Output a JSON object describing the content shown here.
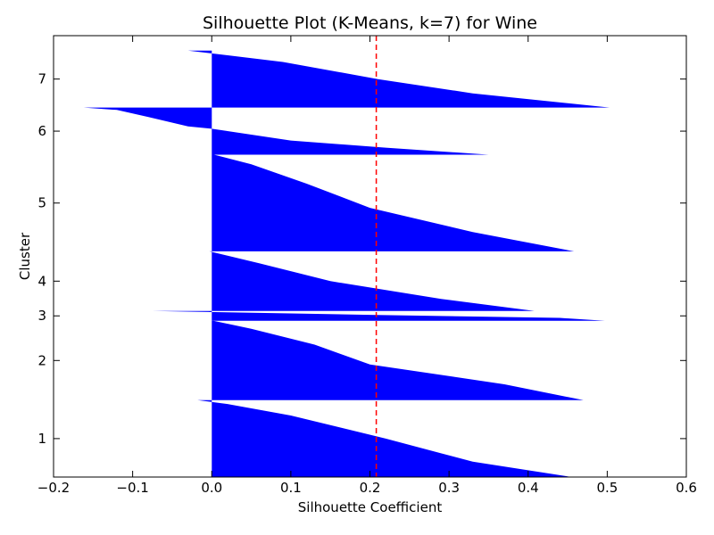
{
  "chart_data": {
    "type": "bar",
    "orientation": "horizontal",
    "title": "Silhouette Plot (K-Means, k=7) for Wine",
    "xlabel": "Silhouette Coefficient",
    "ylabel": "Cluster",
    "xlim": [
      -0.2,
      0.6
    ],
    "ylim": [
      0,
      178
    ],
    "xticks": [
      -0.2,
      -0.1,
      0.0,
      0.1,
      0.2,
      0.3,
      0.4,
      0.5,
      0.6
    ],
    "xtick_labels": [
      "−0.2",
      "−0.1",
      "0.0",
      "0.1",
      "0.2",
      "0.3",
      "0.4",
      "0.5",
      "0.6"
    ],
    "grid": false,
    "fill_color": "#0000ff",
    "mean_silhouette": 0.208,
    "mean_line_color": "#ff0000",
    "clusters": [
      {
        "label": "1",
        "start": 0,
        "size": 31,
        "profile": [
          [
            0.0,
            0.455
          ],
          [
            0.2,
            0.33
          ],
          [
            0.5,
            0.22
          ],
          [
            0.8,
            0.1
          ],
          [
            0.95,
            0.02
          ],
          [
            1.0,
            -0.018
          ]
        ]
      },
      {
        "label": "2",
        "start": 31,
        "size": 32,
        "profile": [
          [
            0.0,
            0.47
          ],
          [
            0.2,
            0.37
          ],
          [
            0.45,
            0.2
          ],
          [
            0.7,
            0.13
          ],
          [
            0.9,
            0.05
          ],
          [
            1.0,
            0.002
          ]
        ]
      },
      {
        "label": "3",
        "start": 63,
        "size": 4,
        "profile": [
          [
            0.0,
            0.497
          ],
          [
            0.3,
            0.44
          ],
          [
            0.6,
            0.2
          ],
          [
            0.85,
            0.02
          ],
          [
            1.0,
            -0.075
          ]
        ]
      },
      {
        "label": "4",
        "start": 67,
        "size": 24,
        "profile": [
          [
            0.0,
            0.408
          ],
          [
            0.2,
            0.29
          ],
          [
            0.5,
            0.15
          ],
          [
            0.8,
            0.06
          ],
          [
            1.0,
            -0.003
          ]
        ]
      },
      {
        "label": "5",
        "start": 91,
        "size": 39,
        "profile": [
          [
            0.0,
            0.458
          ],
          [
            0.2,
            0.33
          ],
          [
            0.45,
            0.2
          ],
          [
            0.7,
            0.12
          ],
          [
            0.9,
            0.05
          ],
          [
            1.0,
            0.003
          ]
        ]
      },
      {
        "label": "6",
        "start": 130,
        "size": 19,
        "profile": [
          [
            0.0,
            0.35
          ],
          [
            0.15,
            0.22
          ],
          [
            0.3,
            0.1
          ],
          [
            0.55,
            0.0
          ],
          [
            0.6,
            -0.03
          ],
          [
            0.8,
            -0.08
          ],
          [
            0.95,
            -0.12
          ],
          [
            1.0,
            -0.162
          ]
        ]
      },
      {
        "label": "7",
        "start": 149,
        "size": 23,
        "profile": [
          [
            0.0,
            0.503
          ],
          [
            0.25,
            0.33
          ],
          [
            0.5,
            0.21
          ],
          [
            0.8,
            0.09
          ],
          [
            1.0,
            -0.03
          ]
        ]
      }
    ]
  }
}
